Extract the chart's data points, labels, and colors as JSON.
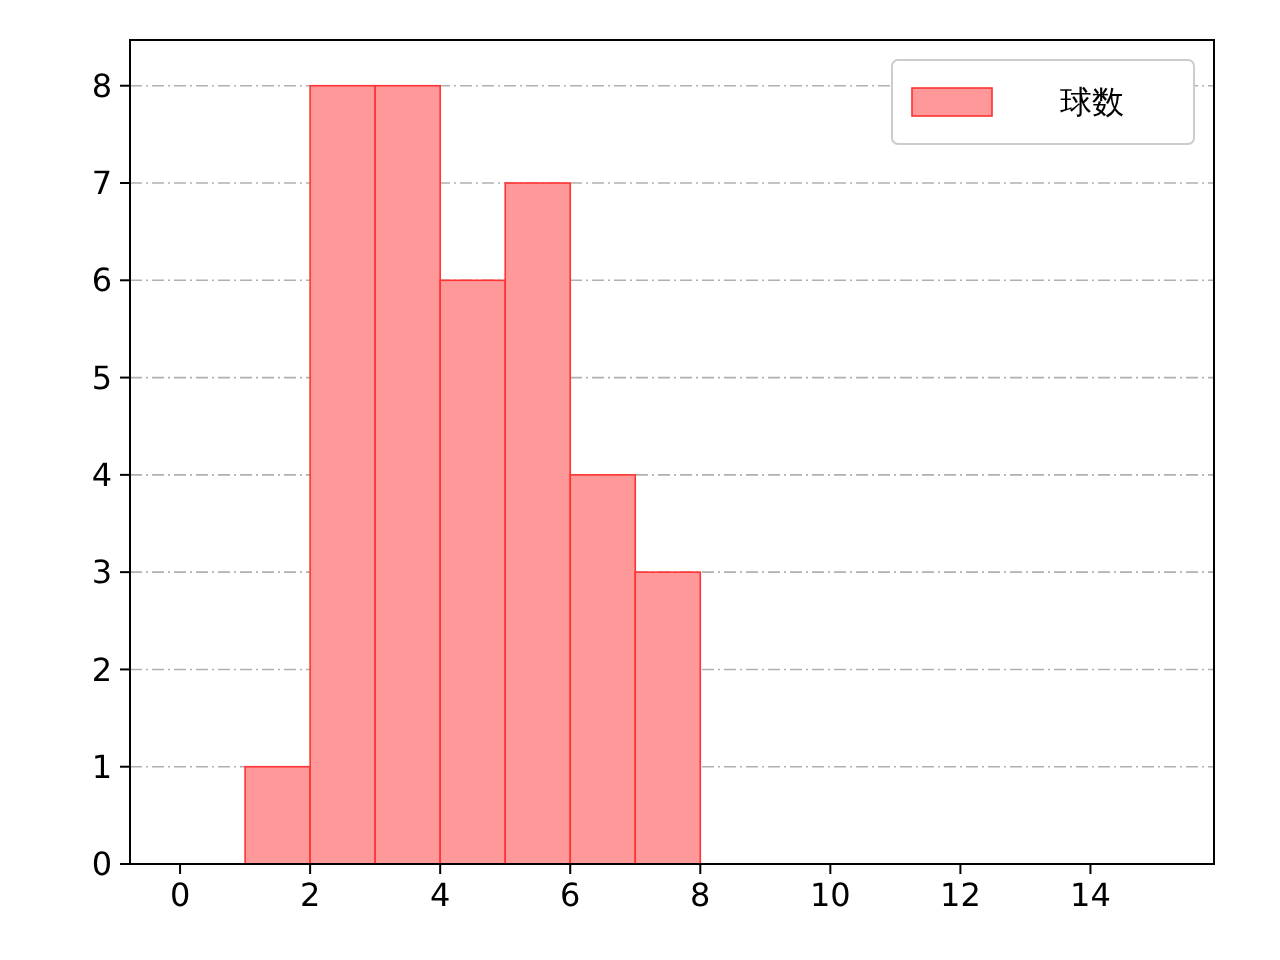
{
  "chart_data": {
    "type": "histogram",
    "bins": [
      1,
      2,
      3,
      4,
      5,
      6,
      7,
      8
    ],
    "series": [
      {
        "name": "球数",
        "color": "#ff9999",
        "values": [
          1,
          8,
          8,
          6,
          7,
          4,
          3
        ]
      }
    ],
    "xlim": [
      -0.77,
      15.9
    ],
    "xticks": [
      0,
      2,
      4,
      6,
      8,
      10,
      12,
      14
    ],
    "ylim": [
      0,
      8.47
    ],
    "yticks": [
      0,
      1,
      2,
      3,
      4,
      5,
      6,
      7,
      8
    ],
    "grid": "y",
    "legend": "top right"
  }
}
